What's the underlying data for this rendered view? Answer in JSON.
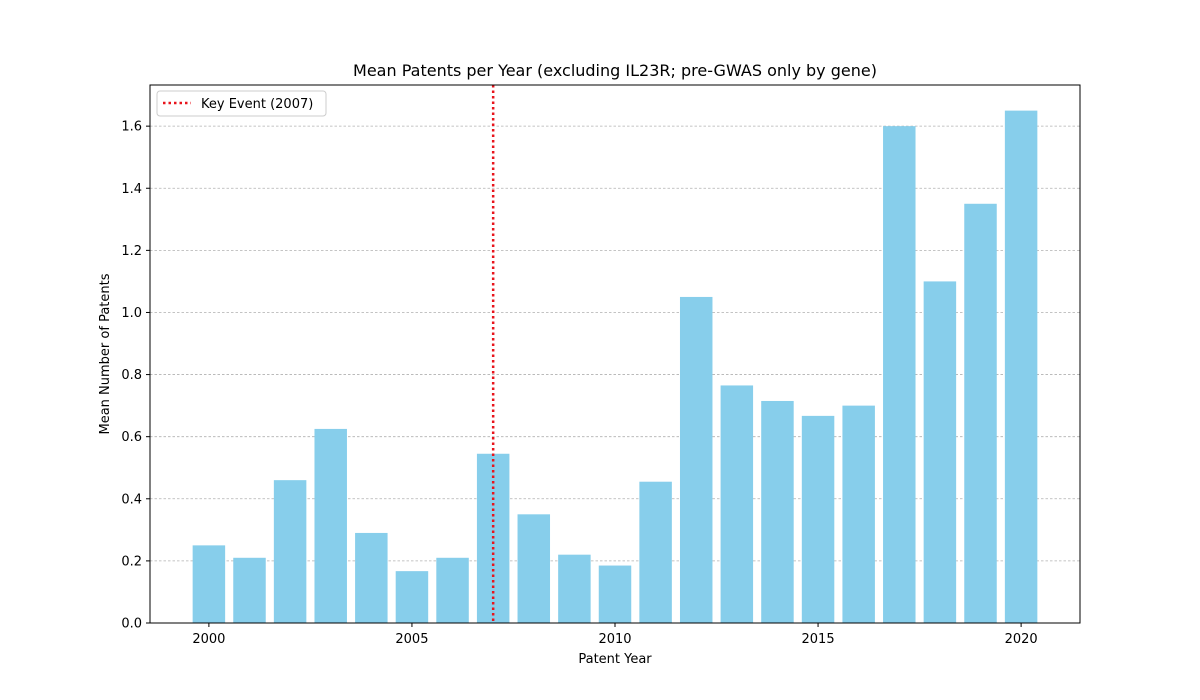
{
  "chart_data": {
    "type": "bar",
    "title": "Mean Patents per Year (excluding IL23R; pre-GWAS only by gene)",
    "xlabel": "Patent Year",
    "ylabel": "Mean Number of Patents",
    "x": [
      2000,
      2001,
      2002,
      2003,
      2004,
      2005,
      2006,
      2007,
      2008,
      2009,
      2010,
      2011,
      2012,
      2013,
      2014,
      2015,
      2016,
      2017,
      2018,
      2019,
      2020
    ],
    "values": [
      0.25,
      0.21,
      0.46,
      0.625,
      0.29,
      0.167,
      0.21,
      0.545,
      0.35,
      0.22,
      0.185,
      0.455,
      1.05,
      0.765,
      0.715,
      0.667,
      0.7,
      1.6,
      1.1,
      1.35,
      1.65
    ],
    "xlim": [
      1998.55,
      2021.45
    ],
    "ylim": [
      0,
      1.7325
    ],
    "xticks": [
      2000,
      2005,
      2010,
      2015,
      2020
    ],
    "yticks": [
      0.0,
      0.2,
      0.4,
      0.6,
      0.8,
      1.0,
      1.2,
      1.4,
      1.6
    ],
    "ytick_labels": [
      "0.0",
      "0.2",
      "0.4",
      "0.6",
      "0.8",
      "1.0",
      "1.2",
      "1.4",
      "1.6"
    ],
    "grid": "y-dashed",
    "bar_color": "#87ceeb",
    "reference_line": {
      "x": 2007,
      "label": "Key Event (2007)",
      "color": "#e8141c",
      "style": "dotted"
    },
    "legend_position": "top-left"
  }
}
